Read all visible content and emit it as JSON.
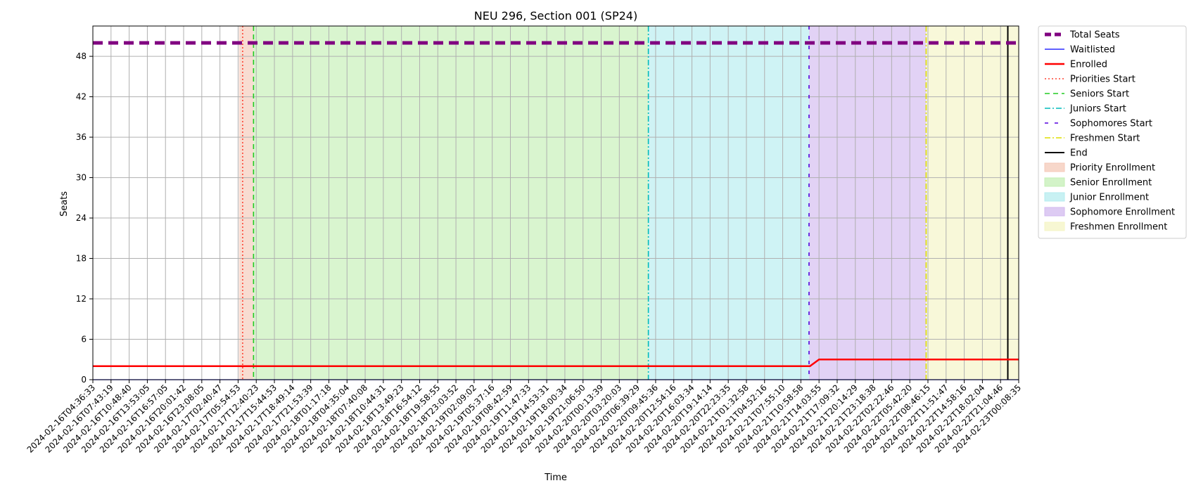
{
  "chart_data": {
    "type": "line",
    "title": "NEU 296, Section 001 (SP24)",
    "xlabel": "Time",
    "ylabel": "Seats",
    "ylim": [
      0,
      52.5
    ],
    "yticks": [
      0,
      6,
      12,
      18,
      24,
      30,
      36,
      42,
      48
    ],
    "grid": true,
    "legend_position": "outside right, top",
    "x_tick_labels": [
      "2024-02-16T04:36:33",
      "2024-02-16T07:43:19",
      "2024-02-16T10:48:40",
      "2024-02-16T13:53:05",
      "2024-02-16T16:57:05",
      "2024-02-16T20:01:42",
      "2024-02-16T23:08:05",
      "2024-02-17T02:40:47",
      "2024-02-17T05:54:53",
      "2024-02-17T12:40:23",
      "2024-02-17T15:44:53",
      "2024-02-17T18:49:14",
      "2024-02-17T21:53:39",
      "2024-02-18T01:17:18",
      "2024-02-18T04:35:04",
      "2024-02-18T07:40:08",
      "2024-02-18T10:44:31",
      "2024-02-18T13:49:23",
      "2024-02-18T16:54:12",
      "2024-02-18T19:58:55",
      "2024-02-18T23:03:52",
      "2024-02-19T02:09:02",
      "2024-02-19T05:37:16",
      "2024-02-19T08:42:59",
      "2024-02-19T11:47:33",
      "2024-02-19T14:53:31",
      "2024-02-19T18:00:34",
      "2024-02-19T21:06:50",
      "2024-02-20T00:13:39",
      "2024-02-20T03:20:03",
      "2024-02-20T06:39:29",
      "2024-02-20T09:45:36",
      "2024-02-20T12:54:16",
      "2024-02-20T16:03:34",
      "2024-02-20T19:14:14",
      "2024-02-20T22:23:35",
      "2024-02-21T01:32:58",
      "2024-02-21T04:52:16",
      "2024-02-21T07:55:10",
      "2024-02-21T10:58:58",
      "2024-02-21T14:03:55",
      "2024-02-21T17:09:32",
      "2024-02-21T20:14:29",
      "2024-02-21T23:18:38",
      "2024-02-22T02:22:46",
      "2024-02-22T05:42:20",
      "2024-02-22T08:46:15",
      "2024-02-22T11:51:47",
      "2024-02-22T14:58:16",
      "2024-02-22T18:02:04",
      "2024-02-22T21:04:46",
      "2024-02-23T00:08:35"
    ],
    "x_index_range": [
      0,
      51
    ],
    "series": [
      {
        "name": "Total Seats",
        "style": "dashed",
        "color": "#800080",
        "x": [
          0,
          51
        ],
        "y": [
          50,
          50
        ]
      },
      {
        "name": "Waitlisted",
        "style": "solid",
        "color": "#0000ff",
        "x": [
          0,
          51
        ],
        "y": [
          0,
          0
        ]
      },
      {
        "name": "Enrolled",
        "style": "solid",
        "color": "#ff0000",
        "x": [
          0,
          39.5,
          40.0,
          51
        ],
        "y": [
          2,
          2,
          3,
          3
        ]
      }
    ],
    "markers": [
      {
        "name": "Priorities Start",
        "style": "dotted",
        "color": "#ff4433",
        "x": 8.25
      },
      {
        "name": "Seniors Start",
        "style": "dashed",
        "color": "#22cc22",
        "x": 8.85
      },
      {
        "name": "Juniors Start",
        "style": "dashdot",
        "color": "#00bbbb",
        "x": 30.6
      },
      {
        "name": "Sophomores Start",
        "style": "loosedash",
        "color": "#5500dd",
        "x": 39.45
      },
      {
        "name": "Freshmen Start",
        "style": "dashdot",
        "color": "#dddd00",
        "x": 45.9
      },
      {
        "name": "End",
        "style": "solid",
        "color": "#000000",
        "x": 50.4
      }
    ],
    "regions": [
      {
        "name": "Priority Enrollment",
        "color": "#f4c9b8",
        "from": 8.05,
        "to": 8.85
      },
      {
        "name": "Senior Enrollment",
        "color": "#c4efb6",
        "from": 8.85,
        "to": 30.6
      },
      {
        "name": "Junior Enrollment",
        "color": "#b5ecef",
        "from": 30.6,
        "to": 39.45
      },
      {
        "name": "Sophomore Enrollment",
        "color": "#d2baef",
        "from": 39.45,
        "to": 45.9
      },
      {
        "name": "Freshmen Enrollment",
        "color": "#f4f4c4",
        "from": 45.9,
        "to": 51
      }
    ]
  }
}
